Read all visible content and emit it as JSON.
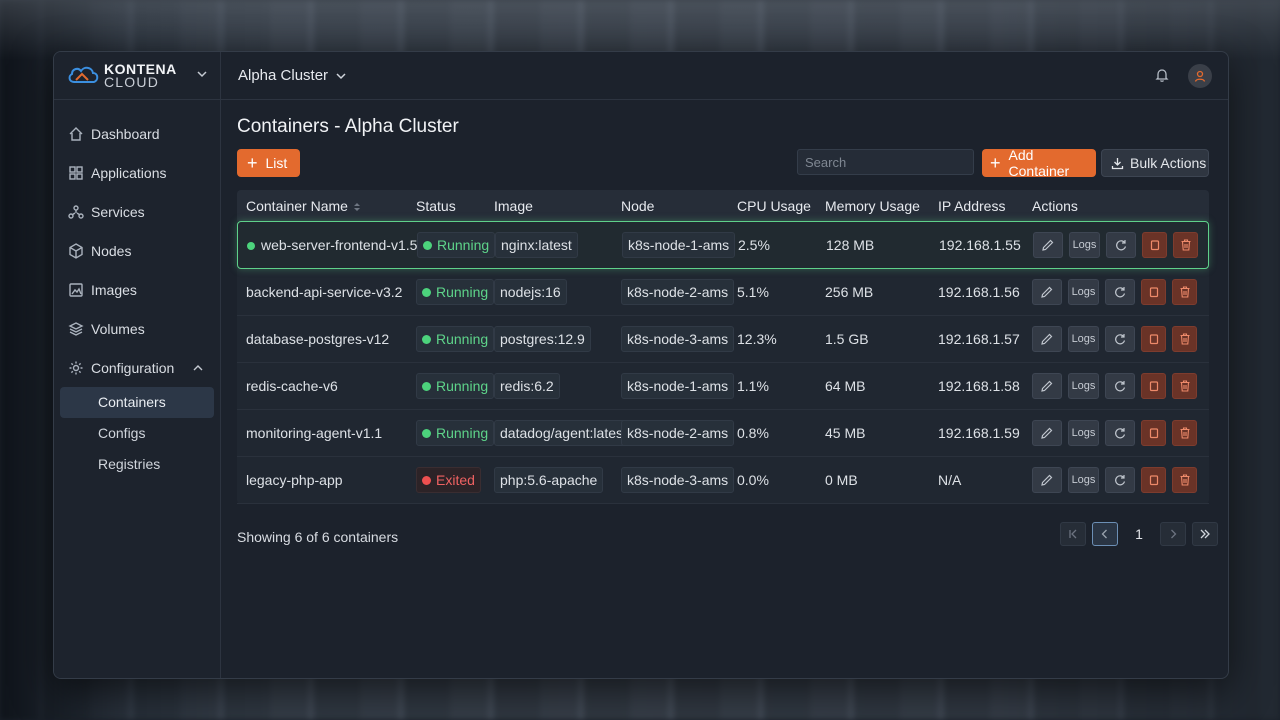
{
  "brand": {
    "line1": "KONTENA",
    "line2": "CLOUD"
  },
  "sidebar": {
    "items": [
      {
        "label": "Dashboard",
        "icon": "home-icon"
      },
      {
        "label": "Applications",
        "icon": "grid-icon"
      },
      {
        "label": "Services",
        "icon": "services-icon"
      },
      {
        "label": "Nodes",
        "icon": "cube-icon"
      },
      {
        "label": "Images",
        "icon": "image-icon"
      },
      {
        "label": "Volumes",
        "icon": "layers-icon"
      },
      {
        "label": "Configuration",
        "icon": "gear-icon"
      }
    ],
    "sub_items": [
      {
        "label": "Containers",
        "active": true
      },
      {
        "label": "Configs"
      },
      {
        "label": "Registries"
      }
    ]
  },
  "topbar": {
    "cluster": "Alpha Cluster"
  },
  "main": {
    "title": "Containers - Alpha Cluster",
    "list_button": "List",
    "search_placeholder": "Search",
    "add_button": "Add Container",
    "bulk_button": "Bulk Actions"
  },
  "table": {
    "headers": [
      "Container Name",
      "Status",
      "Image",
      "Node",
      "CPU Usage",
      "Memory Usage",
      "IP Address",
      "Actions"
    ],
    "logs_label": "Logs",
    "rows": [
      {
        "name": "web-server-frontend-v1.5",
        "status": "Running",
        "image": "nginx:latest",
        "node": "k8s-node-1-ams",
        "cpu": "2.5%",
        "memory": "128 MB",
        "ip": "192.168.1.55",
        "selected": true
      },
      {
        "name": "backend-api-service-v3.2",
        "status": "Running",
        "image": "nodejs:16",
        "node": "k8s-node-2-ams",
        "cpu": "5.1%",
        "memory": "256 MB",
        "ip": "192.168.1.56"
      },
      {
        "name": "database-postgres-v12",
        "status": "Running",
        "image": "postgres:12.9",
        "node": "k8s-node-3-ams",
        "cpu": "12.3%",
        "memory": "1.5 GB",
        "ip": "192.168.1.57"
      },
      {
        "name": "redis-cache-v6",
        "status": "Running",
        "image": "redis:6.2",
        "node": "k8s-node-1-ams",
        "cpu": "1.1%",
        "memory": "64 MB",
        "ip": "192.168.1.58"
      },
      {
        "name": "monitoring-agent-v1.1",
        "status": "Running",
        "image": "datadog/agent:latest",
        "node": "k8s-node-2-ams",
        "cpu": "0.8%",
        "memory": "45 MB",
        "ip": "192.168.1.59"
      },
      {
        "name": "legacy-php-app",
        "status": "Exited",
        "image": "php:5.6-apache",
        "node": "k8s-node-3-ams",
        "cpu": "0.0%",
        "memory": "0 MB",
        "ip": "N/A"
      }
    ]
  },
  "footer": {
    "showing": "Showing 6 of 6 containers",
    "page": "1"
  },
  "colors": {
    "accent": "#e36a2e",
    "running": "#4cd37c",
    "exited": "#ee5050",
    "selected_border": "#5fd18a"
  }
}
